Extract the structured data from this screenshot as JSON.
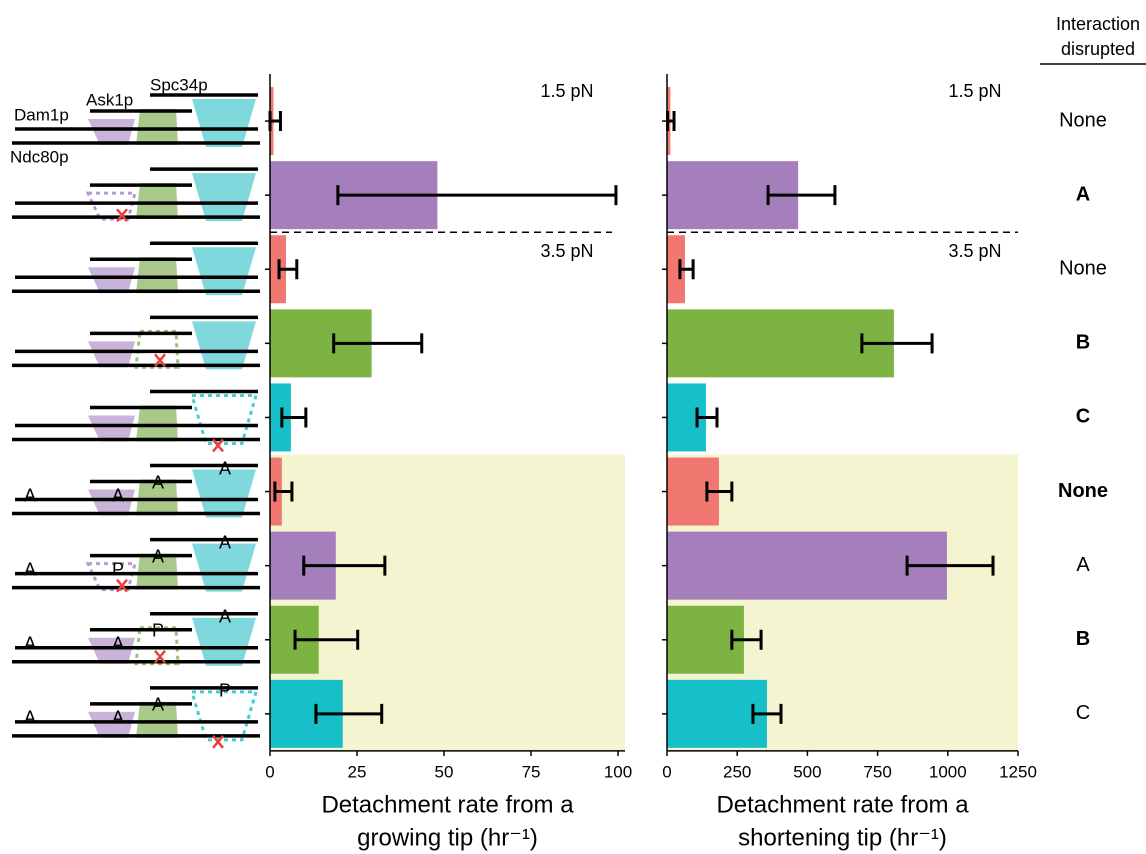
{
  "chart_data": [
    {
      "type": "hbar",
      "xlabel": [
        "Detachment rate from a",
        "growing tip (hr⁻¹)"
      ],
      "annotations": [
        "1.5 pN",
        "3.5 pN"
      ],
      "values": [
        1,
        48.1,
        4.6,
        29.2,
        6.0,
        3.4,
        18.9,
        14.0,
        20.9
      ],
      "err_low": [
        0,
        19.5,
        2.6,
        18.3,
        3.4,
        1.4,
        9.7,
        7.2,
        13.2
      ],
      "err_high": [
        3,
        99.4,
        7.7,
        43.6,
        10.3,
        6.3,
        33.0,
        25.2,
        32.1
      ],
      "colors": [
        "#f07870",
        "#a57fbb",
        "#f07870",
        "#7cb342",
        "#17c0c8",
        "#f07870",
        "#a57fbb",
        "#7cb342",
        "#17c0c8"
      ],
      "xlim": [
        0,
        102
      ],
      "xticks": [
        0,
        25,
        50,
        75,
        100
      ]
    },
    {
      "type": "hbar",
      "xlabel": [
        "Detachment rate from a",
        "shortening tip (hr⁻¹)"
      ],
      "annotations": [
        "1.5 pN",
        "3.5 pN"
      ],
      "values": [
        12,
        467,
        64,
        808,
        139,
        185,
        997,
        274,
        356
      ],
      "err_low": [
        2,
        360,
        46,
        694,
        107,
        142,
        855,
        231,
        306
      ],
      "err_high": [
        25,
        598,
        93,
        944,
        178,
        231,
        1161,
        335,
        406
      ],
      "colors": [
        "#f07870",
        "#a57fbb",
        "#f07870",
        "#7cb342",
        "#17c0c8",
        "#f07870",
        "#a57fbb",
        "#7cb342",
        "#17c0c8"
      ],
      "xlim": [
        0,
        1250
      ],
      "xticks": [
        0,
        250,
        500,
        750,
        1000,
        1250
      ]
    }
  ],
  "interaction": {
    "title": [
      "Interaction",
      "disrupted"
    ],
    "labels": [
      "None",
      "A",
      "None",
      "B",
      "C",
      "None",
      "A",
      "B",
      "C"
    ],
    "colors": [
      "#000000",
      "#a57fbb",
      "#000000",
      "#7cb342",
      "#17c0c8",
      "#000000",
      "#a57fbb",
      "#7cb342",
      "#17c0c8"
    ]
  },
  "diagram": {
    "proteins": [
      "Dam1p",
      "Ask1p",
      "Spc34p",
      "Ndc80p"
    ],
    "markers": [
      [
        "A",
        "A",
        "A",
        "A"
      ],
      [
        "A",
        "P",
        "A",
        "A"
      ],
      [
        "A",
        "A",
        "P",
        "A"
      ],
      [
        "A",
        "A",
        "A",
        "P"
      ]
    ],
    "marker_colors": [
      [
        "#e2d92a",
        "#e2d92a",
        "#e2d92a",
        "#e2d92a"
      ],
      [
        "#e2d92a",
        "#e8403a",
        "#e2d92a",
        "#e2d92a"
      ],
      [
        "#e2d92a",
        "#e2d92a",
        "#e8403a",
        "#e2d92a"
      ],
      [
        "#e2d92a",
        "#e2d92a",
        "#e2d92a",
        "#e8403a"
      ]
    ]
  }
}
